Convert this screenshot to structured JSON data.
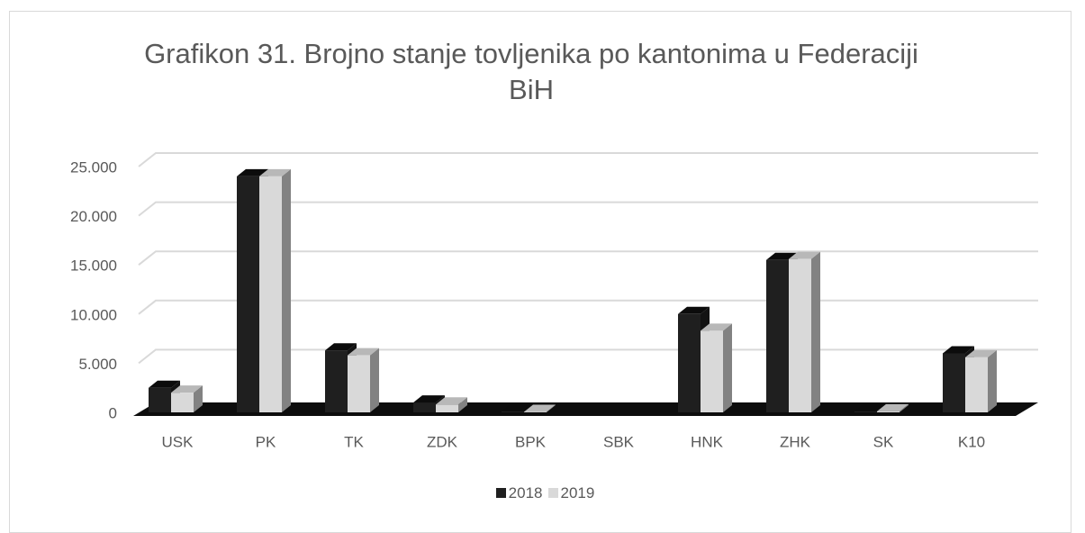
{
  "chart_data": {
    "type": "bar3d",
    "title": "Grafikon 31. Brojno stanje tovljenika po kantonima u Federaciji BiH",
    "categories": [
      "USK",
      "PK",
      "TK",
      "ZDK",
      "BPK",
      "SBK",
      "HNK",
      "ZHK",
      "SK",
      "K10"
    ],
    "series": [
      {
        "name": "2018",
        "color": "#1f1f1f",
        "values": [
          2500,
          24000,
          6300,
          1000,
          100,
          0,
          10000,
          15500,
          100,
          6000
        ]
      },
      {
        "name": "2019",
        "color": "#d9d9d9",
        "values": [
          2000,
          24000,
          5800,
          800,
          50,
          0,
          8300,
          15600,
          100,
          5600
        ]
      }
    ],
    "ylim": [
      0,
      25000
    ],
    "yticks": [
      0,
      {
        "value": 5000,
        "label": "5.000"
      },
      {
        "value": 10000,
        "label": "10.000"
      },
      {
        "value": 15000,
        "label": "15.000"
      },
      {
        "value": 20000,
        "label": "20.000"
      },
      {
        "value": 25000,
        "label": "25.000"
      }
    ],
    "grid": true
  }
}
